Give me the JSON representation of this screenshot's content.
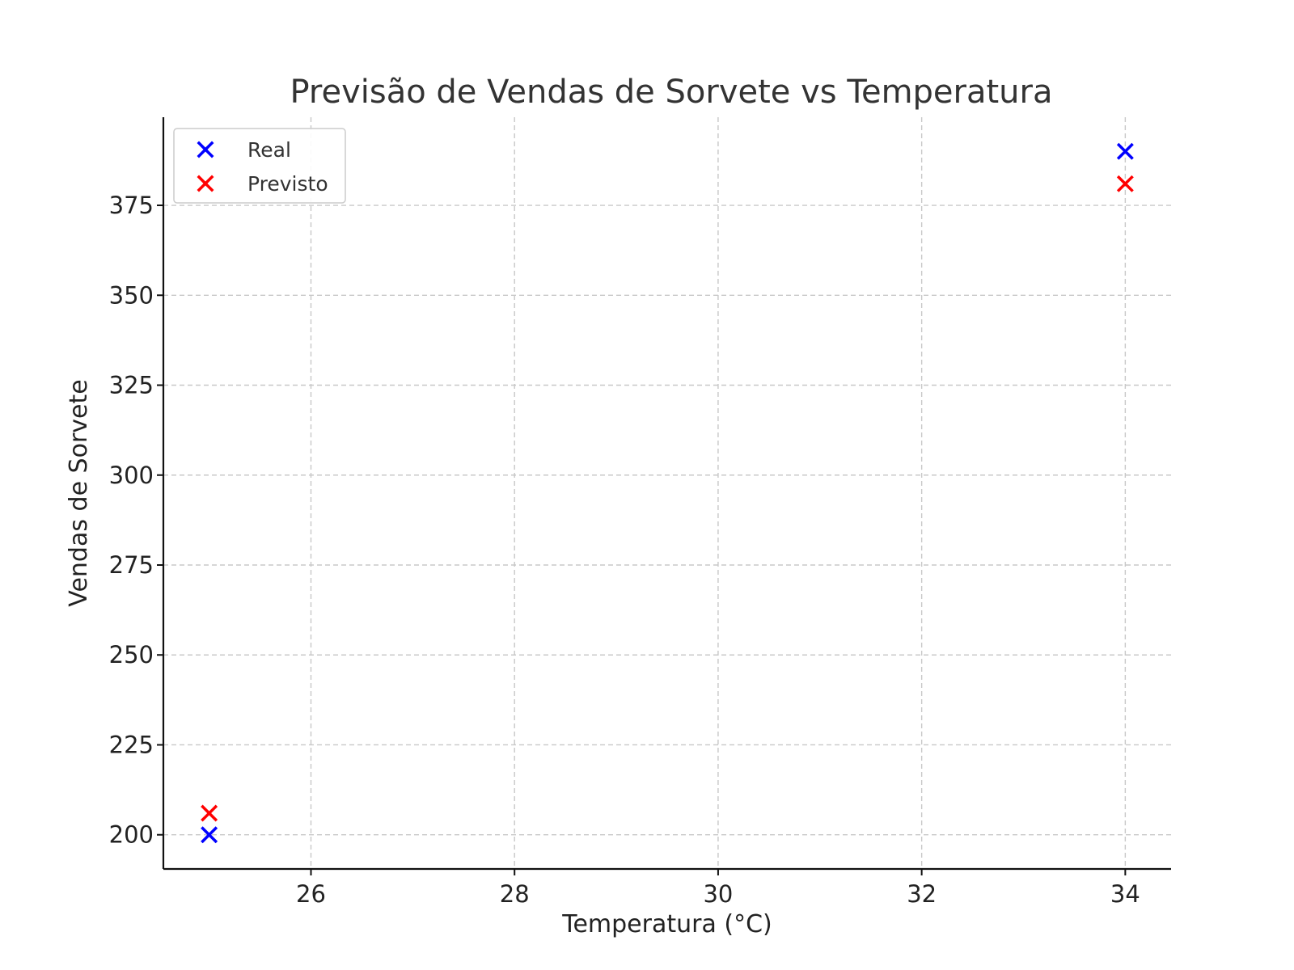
{
  "chart_data": {
    "type": "scatter",
    "title": "Previsão de Vendas de Sorvete vs Temperatura",
    "xlabel": "Temperatura (°C)",
    "ylabel": "Vendas de Sorvete",
    "xlim": [
      24.55,
      34.45
    ],
    "ylim": [
      190.5,
      399.5
    ],
    "xticks": [
      26,
      28,
      30,
      32,
      34
    ],
    "yticks": [
      200,
      225,
      250,
      275,
      300,
      325,
      350,
      375
    ],
    "grid": true,
    "legend_position": "upper-left",
    "marker": "x",
    "series": [
      {
        "name": "Real",
        "color": "#0000ff",
        "points": [
          {
            "x": 25,
            "y": 200
          },
          {
            "x": 34,
            "y": 390
          }
        ]
      },
      {
        "name": "Previsto",
        "color": "#ff0000",
        "points": [
          {
            "x": 25,
            "y": 206
          },
          {
            "x": 34,
            "y": 381
          }
        ]
      }
    ]
  }
}
